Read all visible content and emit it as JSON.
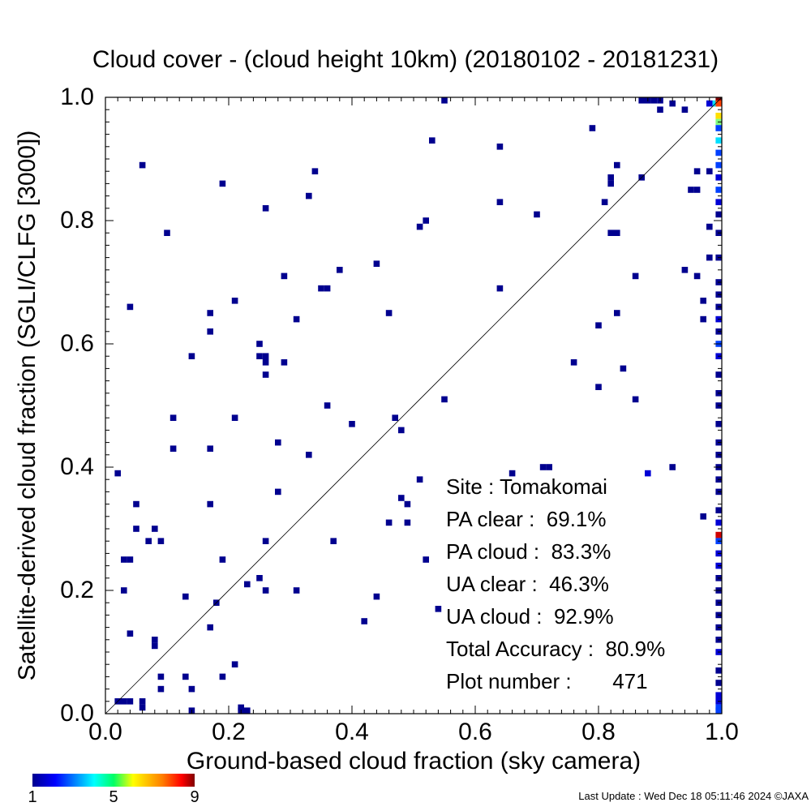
{
  "chart_data": {
    "type": "heatmap",
    "title": "Cloud cover - (cloud height 10km)  (20180102 - 20181231)",
    "xlabel": "Ground-based cloud fraction (sky camera)",
    "ylabel": "Satellite-derived cloud fraction (SGLI/CLFG [3000])",
    "xlim": [
      0.0,
      1.0
    ],
    "ylim": [
      0.0,
      1.0
    ],
    "x_ticks": [
      "0.0",
      "0.2",
      "0.4",
      "0.6",
      "0.8",
      "1.0"
    ],
    "y_ticks": [
      "0.0",
      "0.2",
      "0.4",
      "0.6",
      "0.8",
      "1.0"
    ],
    "diagonal_line": true,
    "grid": false,
    "colorbar": {
      "min": 1,
      "max": 9,
      "ticks": [
        "1",
        "5",
        "9"
      ],
      "colors": [
        "#00008f",
        "#0000ff",
        "#00ffff",
        "#ffff00",
        "#ff0000",
        "#800000"
      ]
    },
    "points": [
      {
        "x": 0.06,
        "y": 0.89,
        "c": 1
      },
      {
        "x": 0.19,
        "y": 0.86,
        "c": 1
      },
      {
        "x": 0.26,
        "y": 0.82,
        "c": 1
      },
      {
        "x": 0.1,
        "y": 0.78,
        "c": 1
      },
      {
        "x": 0.34,
        "y": 0.88,
        "c": 1
      },
      {
        "x": 0.33,
        "y": 0.84,
        "c": 1
      },
      {
        "x": 0.53,
        "y": 0.93,
        "c": 1
      },
      {
        "x": 0.64,
        "y": 0.92,
        "c": 1
      },
      {
        "x": 0.55,
        "y": 1.0,
        "c": 1
      },
      {
        "x": 0.79,
        "y": 0.95,
        "c": 1
      },
      {
        "x": 0.64,
        "y": 0.83,
        "c": 1
      },
      {
        "x": 0.7,
        "y": 0.81,
        "c": 1
      },
      {
        "x": 0.51,
        "y": 0.79,
        "c": 1
      },
      {
        "x": 0.52,
        "y": 0.8,
        "c": 1
      },
      {
        "x": 0.04,
        "y": 0.66,
        "c": 1
      },
      {
        "x": 0.17,
        "y": 0.65,
        "c": 1
      },
      {
        "x": 0.17,
        "y": 0.62,
        "c": 1
      },
      {
        "x": 0.21,
        "y": 0.67,
        "c": 1
      },
      {
        "x": 0.29,
        "y": 0.71,
        "c": 1
      },
      {
        "x": 0.31,
        "y": 0.64,
        "c": 1
      },
      {
        "x": 0.35,
        "y": 0.69,
        "c": 1
      },
      {
        "x": 0.36,
        "y": 0.69,
        "c": 1
      },
      {
        "x": 0.38,
        "y": 0.72,
        "c": 1
      },
      {
        "x": 0.44,
        "y": 0.73,
        "c": 1
      },
      {
        "x": 0.46,
        "y": 0.65,
        "c": 1
      },
      {
        "x": 0.64,
        "y": 0.69,
        "c": 1
      },
      {
        "x": 0.14,
        "y": 0.58,
        "c": 1
      },
      {
        "x": 0.25,
        "y": 0.6,
        "c": 1
      },
      {
        "x": 0.25,
        "y": 0.58,
        "c": 1
      },
      {
        "x": 0.26,
        "y": 0.58,
        "c": 1
      },
      {
        "x": 0.26,
        "y": 0.57,
        "c": 1
      },
      {
        "x": 0.26,
        "y": 0.55,
        "c": 1
      },
      {
        "x": 0.29,
        "y": 0.57,
        "c": 1
      },
      {
        "x": 0.11,
        "y": 0.48,
        "c": 1
      },
      {
        "x": 0.21,
        "y": 0.48,
        "c": 1
      },
      {
        "x": 0.36,
        "y": 0.5,
        "c": 1
      },
      {
        "x": 0.4,
        "y": 0.47,
        "c": 1
      },
      {
        "x": 0.47,
        "y": 0.48,
        "c": 1
      },
      {
        "x": 0.48,
        "y": 0.46,
        "c": 1
      },
      {
        "x": 0.55,
        "y": 0.51,
        "c": 1
      },
      {
        "x": 0.11,
        "y": 0.43,
        "c": 1
      },
      {
        "x": 0.17,
        "y": 0.43,
        "c": 1
      },
      {
        "x": 0.28,
        "y": 0.44,
        "c": 1
      },
      {
        "x": 0.33,
        "y": 0.42,
        "c": 1
      },
      {
        "x": 0.02,
        "y": 0.39,
        "c": 1
      },
      {
        "x": 0.05,
        "y": 0.34,
        "c": 1
      },
      {
        "x": 0.17,
        "y": 0.34,
        "c": 1
      },
      {
        "x": 0.28,
        "y": 0.36,
        "c": 1
      },
      {
        "x": 0.05,
        "y": 0.3,
        "c": 1
      },
      {
        "x": 0.07,
        "y": 0.28,
        "c": 1
      },
      {
        "x": 0.08,
        "y": 0.3,
        "c": 1
      },
      {
        "x": 0.09,
        "y": 0.28,
        "c": 1
      },
      {
        "x": 0.26,
        "y": 0.28,
        "c": 1
      },
      {
        "x": 0.37,
        "y": 0.28,
        "c": 1
      },
      {
        "x": 0.46,
        "y": 0.31,
        "c": 1
      },
      {
        "x": 0.48,
        "y": 0.35,
        "c": 1
      },
      {
        "x": 0.49,
        "y": 0.34,
        "c": 1
      },
      {
        "x": 0.49,
        "y": 0.31,
        "c": 1
      },
      {
        "x": 0.51,
        "y": 0.38,
        "c": 1
      },
      {
        "x": 0.52,
        "y": 0.25,
        "c": 1
      },
      {
        "x": 0.03,
        "y": 0.25,
        "c": 1
      },
      {
        "x": 0.04,
        "y": 0.25,
        "c": 1
      },
      {
        "x": 0.19,
        "y": 0.25,
        "c": 1
      },
      {
        "x": 0.03,
        "y": 0.2,
        "c": 1
      },
      {
        "x": 0.13,
        "y": 0.19,
        "c": 1
      },
      {
        "x": 0.18,
        "y": 0.18,
        "c": 1
      },
      {
        "x": 0.23,
        "y": 0.21,
        "c": 1
      },
      {
        "x": 0.25,
        "y": 0.22,
        "c": 1
      },
      {
        "x": 0.26,
        "y": 0.2,
        "c": 1
      },
      {
        "x": 0.31,
        "y": 0.2,
        "c": 1
      },
      {
        "x": 0.44,
        "y": 0.19,
        "c": 1
      },
      {
        "x": 0.42,
        "y": 0.15,
        "c": 1
      },
      {
        "x": 0.54,
        "y": 0.17,
        "c": 1
      },
      {
        "x": 0.04,
        "y": 0.13,
        "c": 1
      },
      {
        "x": 0.17,
        "y": 0.14,
        "c": 1
      },
      {
        "x": 0.08,
        "y": 0.12,
        "c": 1
      },
      {
        "x": 0.08,
        "y": 0.11,
        "c": 1
      },
      {
        "x": 0.09,
        "y": 0.06,
        "c": 1
      },
      {
        "x": 0.09,
        "y": 0.04,
        "c": 1
      },
      {
        "x": 0.13,
        "y": 0.06,
        "c": 1
      },
      {
        "x": 0.14,
        "y": 0.04,
        "c": 1
      },
      {
        "x": 0.19,
        "y": 0.06,
        "c": 1
      },
      {
        "x": 0.21,
        "y": 0.08,
        "c": 1
      },
      {
        "x": 0.02,
        "y": 0.02,
        "c": 1
      },
      {
        "x": 0.03,
        "y": 0.02,
        "c": 1
      },
      {
        "x": 0.04,
        "y": 0.02,
        "c": 1
      },
      {
        "x": 0.06,
        "y": 0.02,
        "c": 1
      },
      {
        "x": 0.06,
        "y": 0.01,
        "c": 1
      },
      {
        "x": 0.14,
        "y": 0.0,
        "c": 1
      },
      {
        "x": 0.22,
        "y": 0.01,
        "c": 1
      },
      {
        "x": 0.22,
        "y": 0.0,
        "c": 1
      },
      {
        "x": 0.23,
        "y": 0.0,
        "c": 1
      },
      {
        "x": 0.66,
        "y": 0.39,
        "c": 1
      },
      {
        "x": 0.71,
        "y": 0.4,
        "c": 1
      },
      {
        "x": 0.72,
        "y": 0.4,
        "c": 1
      },
      {
        "x": 0.76,
        "y": 0.57,
        "c": 1
      },
      {
        "x": 0.8,
        "y": 0.63,
        "c": 1
      },
      {
        "x": 0.8,
        "y": 0.53,
        "c": 1
      },
      {
        "x": 0.84,
        "y": 0.56,
        "c": 1
      },
      {
        "x": 0.86,
        "y": 0.51,
        "c": 1
      },
      {
        "x": 0.86,
        "y": 0.71,
        "c": 1
      },
      {
        "x": 0.83,
        "y": 0.65,
        "c": 1
      },
      {
        "x": 0.82,
        "y": 0.78,
        "c": 1
      },
      {
        "x": 0.83,
        "y": 0.78,
        "c": 1
      },
      {
        "x": 0.81,
        "y": 0.83,
        "c": 1
      },
      {
        "x": 0.82,
        "y": 0.86,
        "c": 1
      },
      {
        "x": 0.82,
        "y": 0.87,
        "c": 1
      },
      {
        "x": 0.83,
        "y": 0.89,
        "c": 1
      },
      {
        "x": 0.87,
        "y": 0.87,
        "c": 1
      },
      {
        "x": 0.88,
        "y": 0.39,
        "c": 2
      },
      {
        "x": 0.92,
        "y": 0.4,
        "c": 1
      },
      {
        "x": 0.94,
        "y": 0.72,
        "c": 1
      },
      {
        "x": 0.95,
        "y": 0.85,
        "c": 1
      },
      {
        "x": 0.96,
        "y": 0.85,
        "c": 1
      },
      {
        "x": 0.96,
        "y": 0.88,
        "c": 1
      },
      {
        "x": 0.97,
        "y": 0.67,
        "c": 1
      },
      {
        "x": 0.96,
        "y": 0.71,
        "c": 1
      },
      {
        "x": 0.97,
        "y": 0.32,
        "c": 1
      },
      {
        "x": 0.97,
        "y": 0.64,
        "c": 1
      },
      {
        "x": 0.98,
        "y": 0.74,
        "c": 1
      },
      {
        "x": 0.98,
        "y": 0.79,
        "c": 1
      },
      {
        "x": 0.98,
        "y": 0.88,
        "c": 1
      },
      {
        "x": 0.87,
        "y": 1.0,
        "c": 1
      },
      {
        "x": 0.88,
        "y": 1.0,
        "c": 1
      },
      {
        "x": 0.89,
        "y": 1.0,
        "c": 1
      },
      {
        "x": 0.9,
        "y": 1.0,
        "c": 1
      },
      {
        "x": 0.9,
        "y": 0.98,
        "c": 1
      },
      {
        "x": 0.92,
        "y": 0.99,
        "c": 1
      },
      {
        "x": 0.94,
        "y": 0.98,
        "c": 1
      },
      {
        "x": 0.98,
        "y": 0.99,
        "c": 2
      },
      {
        "x": 0.99,
        "y": 0.99,
        "c": 4
      },
      {
        "x": 1.0,
        "y": 1.0,
        "c": 9
      },
      {
        "x": 1.0,
        "y": 0.99,
        "c": 7
      },
      {
        "x": 1.0,
        "y": 0.97,
        "c": 6
      },
      {
        "x": 1.0,
        "y": 0.96,
        "c": 5
      },
      {
        "x": 1.0,
        "y": 0.95,
        "c": 3
      },
      {
        "x": 1.0,
        "y": 0.93,
        "c": 4
      },
      {
        "x": 1.0,
        "y": 0.91,
        "c": 3
      },
      {
        "x": 1.0,
        "y": 0.89,
        "c": 3
      },
      {
        "x": 1.0,
        "y": 0.87,
        "c": 2
      },
      {
        "x": 1.0,
        "y": 0.85,
        "c": 3
      },
      {
        "x": 1.0,
        "y": 0.83,
        "c": 2
      },
      {
        "x": 1.0,
        "y": 0.81,
        "c": 1
      },
      {
        "x": 1.0,
        "y": 0.78,
        "c": 1
      },
      {
        "x": 1.0,
        "y": 0.74,
        "c": 1
      },
      {
        "x": 1.0,
        "y": 0.7,
        "c": 1
      },
      {
        "x": 1.0,
        "y": 0.68,
        "c": 1
      },
      {
        "x": 1.0,
        "y": 0.66,
        "c": 1
      },
      {
        "x": 1.0,
        "y": 0.64,
        "c": 2
      },
      {
        "x": 1.0,
        "y": 0.62,
        "c": 1
      },
      {
        "x": 1.0,
        "y": 0.6,
        "c": 3
      },
      {
        "x": 1.0,
        "y": 0.58,
        "c": 2
      },
      {
        "x": 1.0,
        "y": 0.55,
        "c": 1
      },
      {
        "x": 1.0,
        "y": 0.52,
        "c": 1
      },
      {
        "x": 1.0,
        "y": 0.5,
        "c": 1
      },
      {
        "x": 1.0,
        "y": 0.47,
        "c": 1
      },
      {
        "x": 1.0,
        "y": 0.44,
        "c": 1
      },
      {
        "x": 1.0,
        "y": 0.42,
        "c": 1
      },
      {
        "x": 1.0,
        "y": 0.4,
        "c": 1
      },
      {
        "x": 1.0,
        "y": 0.38,
        "c": 1
      },
      {
        "x": 1.0,
        "y": 0.36,
        "c": 1
      },
      {
        "x": 1.0,
        "y": 0.33,
        "c": 1
      },
      {
        "x": 1.0,
        "y": 0.31,
        "c": 2
      },
      {
        "x": 1.0,
        "y": 0.29,
        "c": 8
      },
      {
        "x": 1.0,
        "y": 0.28,
        "c": 3
      },
      {
        "x": 1.0,
        "y": 0.26,
        "c": 2
      },
      {
        "x": 1.0,
        "y": 0.24,
        "c": 2
      },
      {
        "x": 1.0,
        "y": 0.22,
        "c": 1
      },
      {
        "x": 1.0,
        "y": 0.2,
        "c": 1
      },
      {
        "x": 1.0,
        "y": 0.18,
        "c": 1
      },
      {
        "x": 1.0,
        "y": 0.16,
        "c": 1
      },
      {
        "x": 1.0,
        "y": 0.14,
        "c": 1
      },
      {
        "x": 1.0,
        "y": 0.12,
        "c": 1
      },
      {
        "x": 1.0,
        "y": 0.1,
        "c": 2
      },
      {
        "x": 1.0,
        "y": 0.07,
        "c": 1
      },
      {
        "x": 1.0,
        "y": 0.05,
        "c": 1
      },
      {
        "x": 1.0,
        "y": 0.03,
        "c": 2
      },
      {
        "x": 1.0,
        "y": 0.02,
        "c": 2
      },
      {
        "x": 1.0,
        "y": 0.01,
        "c": 3
      },
      {
        "x": 1.0,
        "y": 0.0,
        "c": 3
      }
    ]
  },
  "stats": {
    "site": "Site : Tomakomai",
    "pa_clear": "PA clear :  69.1%",
    "pa_cloud": "PA cloud :  83.3%",
    "ua_clear": "UA clear :  46.3%",
    "ua_cloud": "UA cloud :  92.9%",
    "total_accuracy": "Total Accuracy :  80.9%",
    "plot_number": "Plot number :       471"
  },
  "footer": {
    "last_update": "Last Update : Wed Dec 18 05:11:46 2024  ©JAXA"
  }
}
